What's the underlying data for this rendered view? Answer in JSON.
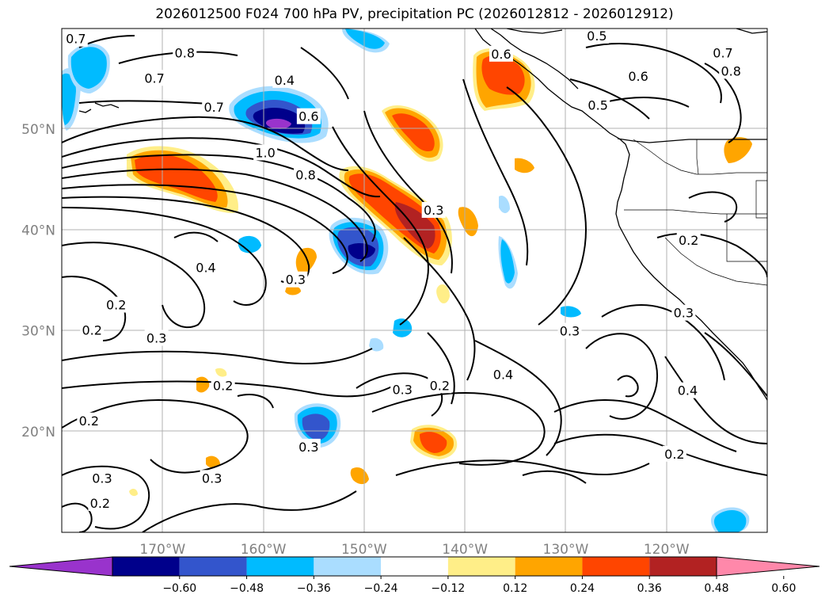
{
  "title": "2026012500 F024 700 hPa PV, precipitation PC (2026012812 - 2026012912)",
  "map": {
    "lon_range": [
      -180,
      -110
    ],
    "lat_range": [
      10,
      60
    ],
    "lat_ticks": [
      {
        "lat": 20,
        "label": "20°N"
      },
      {
        "lat": 30,
        "label": "30°N"
      },
      {
        "lat": 40,
        "label": "40°N"
      },
      {
        "lat": 50,
        "label": "50°N"
      }
    ],
    "lon_ticks": [
      {
        "lon": -170,
        "label": "170°W"
      },
      {
        "lon": -160,
        "label": "160°W"
      },
      {
        "lon": -150,
        "label": "150°W"
      },
      {
        "lon": -140,
        "label": "140°W"
      },
      {
        "lon": -130,
        "label": "130°W"
      },
      {
        "lon": -120,
        "label": "120°W"
      }
    ],
    "contour_labels": [
      {
        "text": "0.7",
        "lon": -178.6,
        "lat": 59.0
      },
      {
        "text": "0.8",
        "lon": -167.8,
        "lat": 57.6
      },
      {
        "text": "0.7",
        "lon": -170.8,
        "lat": 55.1
      },
      {
        "text": "0.4",
        "lon": -157.9,
        "lat": 54.9
      },
      {
        "text": "0.7",
        "lon": -164.9,
        "lat": 52.2
      },
      {
        "text": "0.6",
        "lon": -155.5,
        "lat": 51.3
      },
      {
        "text": "1.0",
        "lon": -159.8,
        "lat": 47.7
      },
      {
        "text": "0.8",
        "lon": -155.8,
        "lat": 45.5
      },
      {
        "text": "0.4",
        "lon": -165.7,
        "lat": 36.3
      },
      {
        "text": "0.3",
        "lon": -156.8,
        "lat": 35.1
      },
      {
        "text": "0.3",
        "lon": -143.1,
        "lat": 42.0
      },
      {
        "text": "0.6",
        "lon": -136.4,
        "lat": 57.5
      },
      {
        "text": "0.5",
        "lon": -126.9,
        "lat": 59.3
      },
      {
        "text": "0.6",
        "lon": -122.8,
        "lat": 55.3
      },
      {
        "text": "0.5",
        "lon": -126.8,
        "lat": 52.4
      },
      {
        "text": "0.7",
        "lon": -114.4,
        "lat": 57.6
      },
      {
        "text": "0.8",
        "lon": -113.6,
        "lat": 55.8
      },
      {
        "text": "0.2",
        "lon": -117.8,
        "lat": 39.0
      },
      {
        "text": "0.2",
        "lon": -174.6,
        "lat": 32.6
      },
      {
        "text": "0.2",
        "lon": -177.0,
        "lat": 30.1
      },
      {
        "text": "0.3",
        "lon": -170.6,
        "lat": 29.3
      },
      {
        "text": "0.3",
        "lon": -118.3,
        "lat": 31.8
      },
      {
        "text": "0.3",
        "lon": -129.6,
        "lat": 30.0
      },
      {
        "text": "0.2",
        "lon": -164.0,
        "lat": 24.6
      },
      {
        "text": "0.3",
        "lon": -146.2,
        "lat": 24.2
      },
      {
        "text": "0.2",
        "lon": -142.5,
        "lat": 24.6
      },
      {
        "text": "0.4",
        "lon": -136.2,
        "lat": 25.7
      },
      {
        "text": "0.4",
        "lon": -117.9,
        "lat": 24.1
      },
      {
        "text": "0.2",
        "lon": -177.3,
        "lat": 21.1
      },
      {
        "text": "0.3",
        "lon": -155.5,
        "lat": 18.5
      },
      {
        "text": "0.2",
        "lon": -119.2,
        "lat": 17.8
      },
      {
        "text": "0.3",
        "lon": -176.0,
        "lat": 15.4
      },
      {
        "text": "0.3",
        "lon": -165.1,
        "lat": 15.4
      },
      {
        "text": "0.2",
        "lon": -176.2,
        "lat": 12.9
      }
    ]
  },
  "colorbar": {
    "colors": [
      "#9933cc",
      "#00008b",
      "#3355cc",
      "#00bbff",
      "#aaddff",
      "#ffffff",
      "#ffee88",
      "#ffa500",
      "#ff4500",
      "#b22222",
      "#ff88aa"
    ],
    "tick_labels": [
      "−0.60",
      "−0.48",
      "−0.36",
      "−0.24",
      "−0.12",
      "0.12",
      "0.24",
      "0.36",
      "0.48",
      "0.60"
    ]
  },
  "colors": {
    "contour": "#000000",
    "grid": "#b0b0b0",
    "axis_label": "#808080"
  }
}
